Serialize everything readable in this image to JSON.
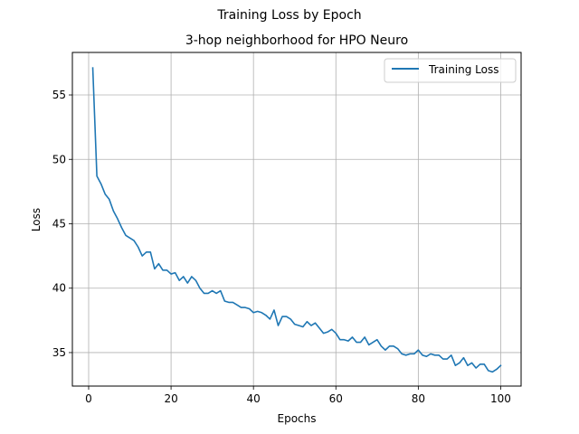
{
  "chart_data": {
    "type": "line",
    "suptitle": "Training Loss by Epoch",
    "title": "3-hop neighborhood for HPO Neuro",
    "xlabel": "Epochs",
    "ylabel": "Loss",
    "xlim": [
      -3.95,
      104.95
    ],
    "ylim": [
      32.4,
      58.3
    ],
    "xticks": [
      0,
      20,
      40,
      60,
      80,
      100
    ],
    "yticks": [
      35,
      40,
      45,
      50,
      55
    ],
    "grid": true,
    "legend_position": "top-right",
    "series": [
      {
        "name": "Training Loss",
        "color": "#1f77b4",
        "x": [
          1,
          2,
          3,
          4,
          5,
          6,
          7,
          8,
          9,
          10,
          11,
          12,
          13,
          14,
          15,
          16,
          17,
          18,
          19,
          20,
          21,
          22,
          23,
          24,
          25,
          26,
          27,
          28,
          29,
          30,
          31,
          32,
          33,
          34,
          35,
          36,
          37,
          38,
          39,
          40,
          41,
          42,
          43,
          44,
          45,
          46,
          47,
          48,
          49,
          50,
          51,
          52,
          53,
          54,
          55,
          56,
          57,
          58,
          59,
          60,
          61,
          62,
          63,
          64,
          65,
          66,
          67,
          68,
          69,
          70,
          71,
          72,
          73,
          74,
          75,
          76,
          77,
          78,
          79,
          80,
          81,
          82,
          83,
          84,
          85,
          86,
          87,
          88,
          89,
          90,
          91,
          92,
          93,
          94,
          95,
          96,
          97,
          98,
          99,
          100
        ],
        "y": [
          57.1,
          48.7,
          48.1,
          47.3,
          46.9,
          46.0,
          45.4,
          44.7,
          44.1,
          43.9,
          43.7,
          43.2,
          42.5,
          42.8,
          42.8,
          41.5,
          41.9,
          41.4,
          41.4,
          41.1,
          41.2,
          40.6,
          40.9,
          40.4,
          40.9,
          40.6,
          40.0,
          39.6,
          39.6,
          39.8,
          39.6,
          39.8,
          39.0,
          38.9,
          38.9,
          38.7,
          38.5,
          38.5,
          38.4,
          38.1,
          38.2,
          38.1,
          37.9,
          37.6,
          38.3,
          37.1,
          37.8,
          37.8,
          37.6,
          37.2,
          37.1,
          37.0,
          37.4,
          37.1,
          37.3,
          36.9,
          36.5,
          36.6,
          36.8,
          36.5,
          36.0,
          36.0,
          35.9,
          36.2,
          35.8,
          35.8,
          36.2,
          35.6,
          35.8,
          36.0,
          35.5,
          35.2,
          35.5,
          35.5,
          35.3,
          34.9,
          34.8,
          34.9,
          34.9,
          35.2,
          34.8,
          34.7,
          34.9,
          34.8,
          34.8,
          34.5,
          34.5,
          34.8,
          34.0,
          34.2,
          34.6,
          34.0,
          34.2,
          33.8,
          34.1,
          34.1,
          33.6,
          33.5,
          33.7,
          34.0
        ]
      }
    ]
  }
}
